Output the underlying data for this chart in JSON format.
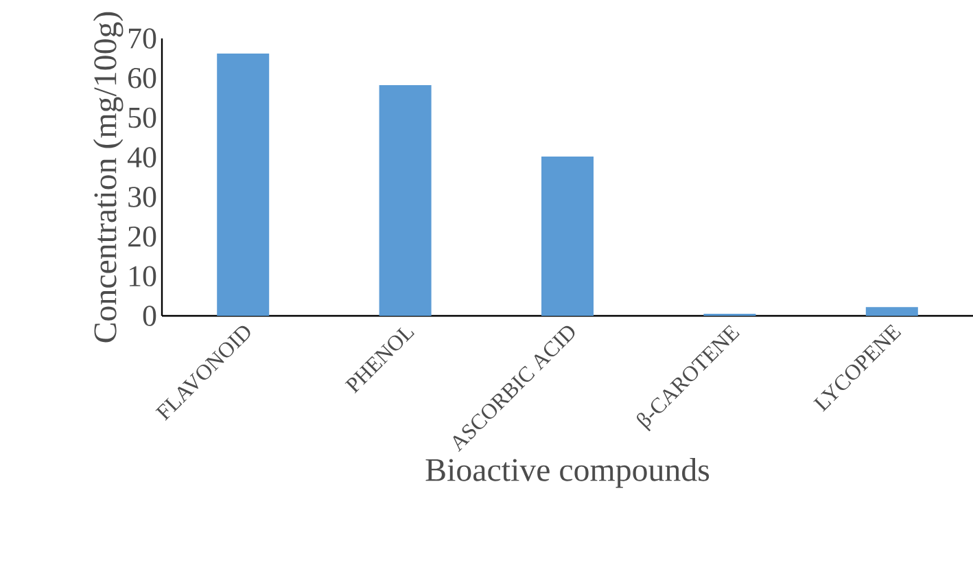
{
  "chart_data": {
    "type": "bar",
    "xlabel": "Bioactive compounds",
    "ylabel": "Concentration (mg/100g)",
    "categories": [
      "FLAVONOID",
      "PHENOL",
      "ASCORBIC ACID",
      "β-CAROTENE",
      "LYCOPENE"
    ],
    "values": [
      66.2,
      58.2,
      40.2,
      0.5,
      2.2
    ],
    "color": "#5b9bd5",
    "ylim": [
      0,
      70
    ],
    "yticks": [
      0,
      10,
      20,
      30,
      40,
      50,
      60,
      70
    ],
    "grid": false
  }
}
